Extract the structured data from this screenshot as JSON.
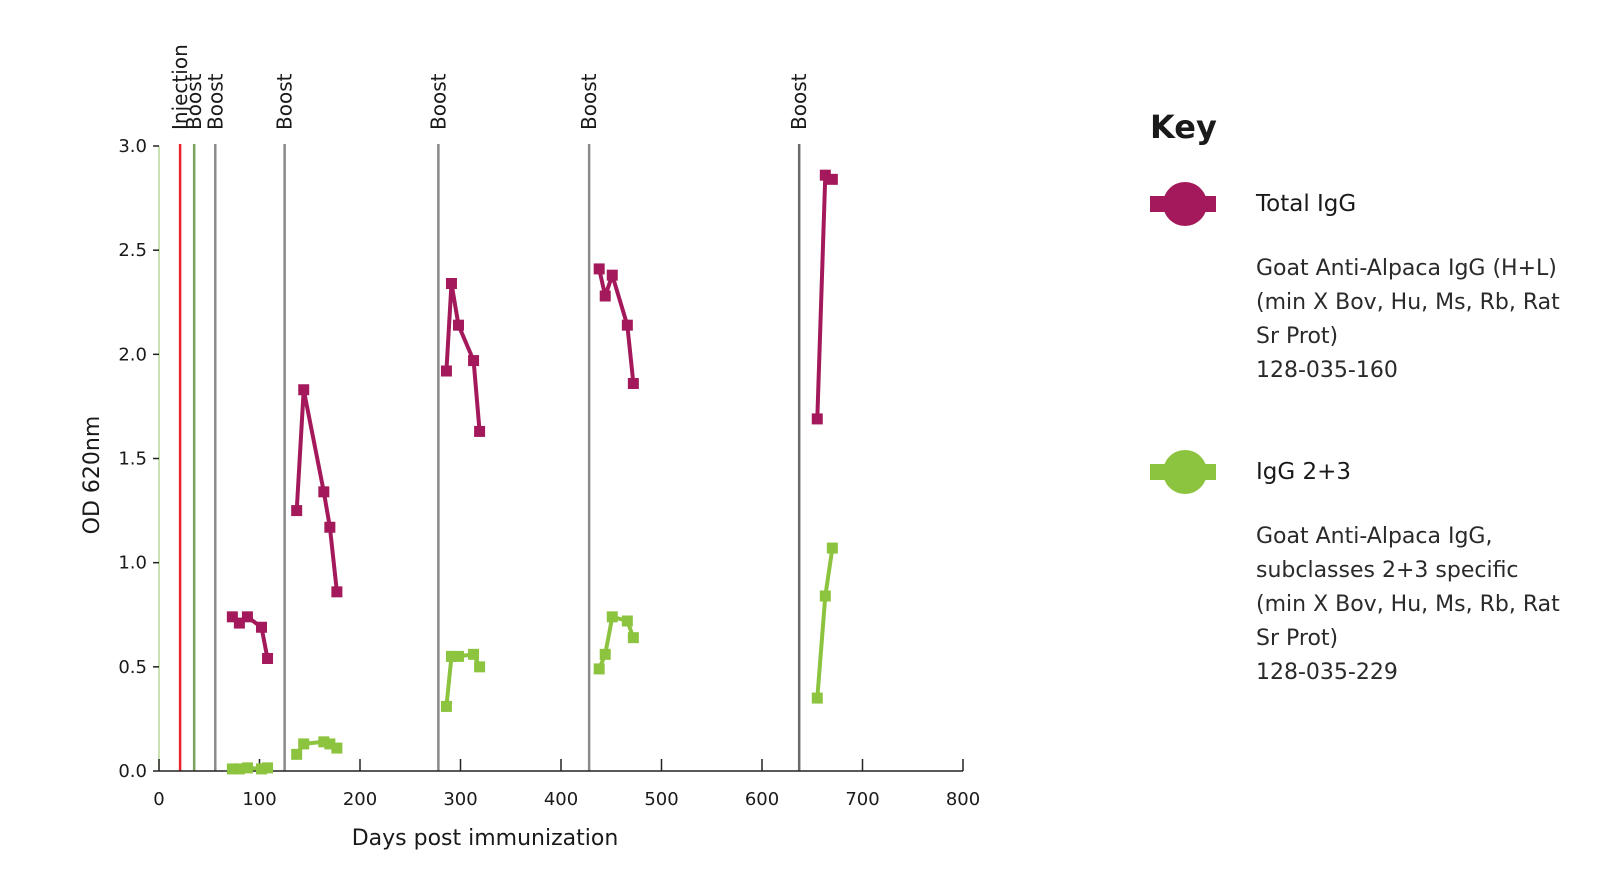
{
  "chart_data": {
    "type": "line",
    "title": "",
    "xlabel": "Days post immunization",
    "ylabel": "OD 620nm",
    "xlim": [
      0,
      800
    ],
    "ylim": [
      0,
      3.0
    ],
    "xticks": [
      0,
      100,
      200,
      300,
      400,
      500,
      600,
      700,
      800
    ],
    "yticks": [
      0.0,
      0.5,
      1.0,
      1.5,
      2.0,
      2.5,
      3.0
    ],
    "xtick_labels": [
      "0",
      "100",
      "200",
      "300",
      "400",
      "500",
      "600",
      "700",
      "800"
    ],
    "ytick_labels": [
      "0.0",
      "0.5",
      "1.0",
      "1.5",
      "2.0",
      "2.5",
      "3.0"
    ],
    "grid": false,
    "legend_position": "right",
    "events": [
      {
        "label": "Injection",
        "x": 21,
        "color": "#e8232a"
      },
      {
        "label": "Boost",
        "x": 35,
        "color": "#7aa35a"
      },
      {
        "label": "Boost",
        "x": 56,
        "color": "#8a8a8a"
      },
      {
        "label": "Boost",
        "x": 125,
        "color": "#8a8a8a"
      },
      {
        "label": "Boost",
        "x": 278,
        "color": "#8a8a8a"
      },
      {
        "label": "Boost",
        "x": 428,
        "color": "#8a8a8a"
      },
      {
        "label": "Boost",
        "x": 637,
        "color": "#6a6a6a"
      }
    ],
    "series": [
      {
        "name": "Total IgG",
        "color": "#a3195b",
        "segments": [
          [
            [
              73,
              0.74
            ],
            [
              80,
              0.71
            ],
            [
              88,
              0.74
            ],
            [
              102,
              0.69
            ],
            [
              108,
              0.54
            ]
          ],
          [
            [
              137,
              1.25
            ],
            [
              144,
              1.83
            ],
            [
              164,
              1.34
            ],
            [
              170,
              1.17
            ],
            [
              177,
              0.86
            ]
          ],
          [
            [
              286,
              1.92
            ],
            [
              291,
              2.34
            ],
            [
              298,
              2.14
            ],
            [
              313,
              1.97
            ],
            [
              319,
              1.63
            ]
          ],
          [
            [
              438,
              2.41
            ],
            [
              444,
              2.28
            ],
            [
              451,
              2.38
            ],
            [
              466,
              2.14
            ],
            [
              472,
              1.86
            ]
          ],
          [
            [
              655,
              1.69
            ],
            [
              663,
              2.86
            ],
            [
              670,
              2.84
            ]
          ]
        ]
      },
      {
        "name": "IgG 2+3",
        "color": "#8dc43f",
        "segments": [
          [
            [
              73,
              0.01
            ],
            [
              80,
              0.01
            ],
            [
              88,
              0.015
            ],
            [
              102,
              0.01
            ],
            [
              108,
              0.015
            ]
          ],
          [
            [
              137,
              0.08
            ],
            [
              144,
              0.13
            ],
            [
              164,
              0.14
            ],
            [
              170,
              0.13
            ],
            [
              177,
              0.11
            ]
          ],
          [
            [
              286,
              0.31
            ],
            [
              291,
              0.55
            ],
            [
              298,
              0.55
            ],
            [
              313,
              0.56
            ],
            [
              319,
              0.5
            ]
          ],
          [
            [
              438,
              0.49
            ],
            [
              444,
              0.56
            ],
            [
              451,
              0.74
            ],
            [
              466,
              0.72
            ],
            [
              472,
              0.64
            ]
          ],
          [
            [
              655,
              0.35
            ],
            [
              663,
              0.84
            ],
            [
              670,
              1.07
            ]
          ]
        ]
      }
    ]
  },
  "legend": {
    "title": "Key",
    "items": [
      {
        "name": "Total IgG",
        "color": "#a3195b",
        "description": [
          "Goat Anti-Alpaca IgG (H+L)",
          "(min X Bov, Hu, Ms, Rb, Rat",
          "Sr Prot)",
          "128-035-160"
        ]
      },
      {
        "name": "IgG 2+3",
        "color": "#8dc43f",
        "description": [
          "Goat Anti-Alpaca IgG,",
          "subclasses 2+3 specific",
          "(min X Bov, Hu, Ms, Rb, Rat",
          "Sr Prot)",
          "128-035-229"
        ]
      }
    ]
  }
}
